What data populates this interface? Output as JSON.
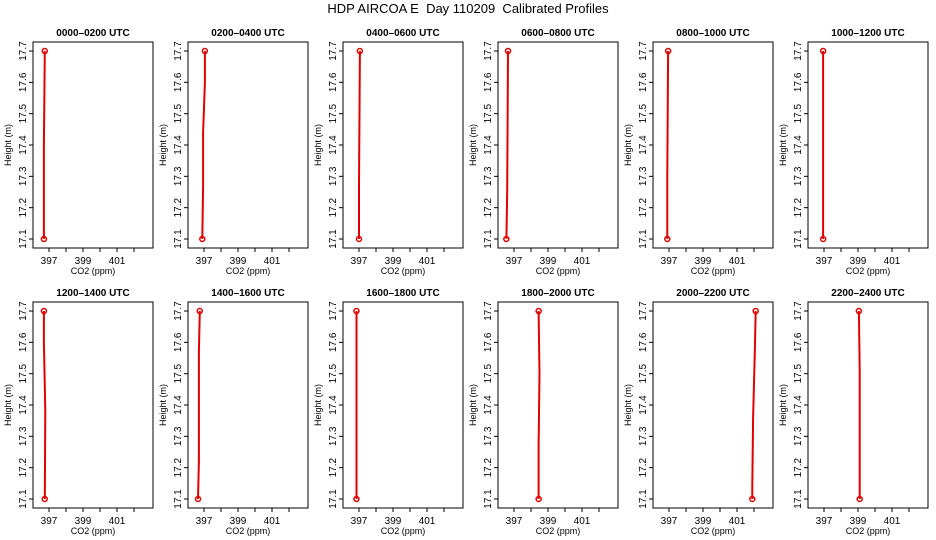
{
  "title": "HDP AIRCOA E  Day 110209  Calibrated Profiles",
  "colors": {
    "profile": "#e00000",
    "axes": "#000000"
  },
  "chart_data": [
    {
      "type": "line",
      "title": "0000–0200 UTC",
      "xlabel": "CO2 (ppm)",
      "ylabel": "Height (m)",
      "xlim": [
        396,
        402.5
      ],
      "ylim": [
        17.07,
        17.73
      ],
      "xticks": [
        "397",
        "399",
        "401"
      ],
      "yticks": [
        "17.1",
        "17.2",
        "17.3",
        "17.4",
        "17.5",
        "17.6",
        "17.7"
      ],
      "series": [
        {
          "points": [
            [
              396.7,
              17.1
            ],
            [
              396.7,
              17.4
            ],
            [
              396.75,
              17.7
            ]
          ]
        }
      ]
    },
    {
      "type": "line",
      "title": "0200–0400 UTC",
      "xlabel": "CO2 (ppm)",
      "ylabel": "Height (m)",
      "xlim": [
        396,
        402.5
      ],
      "ylim": [
        17.07,
        17.73
      ],
      "xticks": [
        "397",
        "399",
        "401"
      ],
      "yticks": [
        "17.1",
        "17.2",
        "17.3",
        "17.4",
        "17.5",
        "17.6",
        "17.7"
      ],
      "series": [
        {
          "points": [
            [
              396.9,
              17.1
            ],
            [
              396.95,
              17.27
            ],
            [
              396.95,
              17.44
            ],
            [
              397.05,
              17.6
            ],
            [
              397.05,
              17.7
            ]
          ]
        }
      ]
    },
    {
      "type": "line",
      "title": "0400–0600 UTC",
      "xlabel": "CO2 (ppm)",
      "ylabel": "Height (m)",
      "xlim": [
        396,
        402.5
      ],
      "ylim": [
        17.07,
        17.73
      ],
      "xticks": [
        "397",
        "399",
        "401"
      ],
      "yticks": [
        "17.1",
        "17.2",
        "17.3",
        "17.4",
        "17.5",
        "17.6",
        "17.7"
      ],
      "series": [
        {
          "points": [
            [
              397.0,
              17.1
            ],
            [
              397.0,
              17.27
            ],
            [
              397.05,
              17.7
            ]
          ]
        }
      ]
    },
    {
      "type": "line",
      "title": "0600–0800 UTC",
      "xlabel": "CO2 (ppm)",
      "ylabel": "Height (m)",
      "xlim": [
        396,
        402.5
      ],
      "ylim": [
        17.07,
        17.73
      ],
      "xticks": [
        "397",
        "399",
        "401"
      ],
      "yticks": [
        "17.1",
        "17.2",
        "17.3",
        "17.4",
        "17.5",
        "17.6",
        "17.7"
      ],
      "series": [
        {
          "points": [
            [
              396.55,
              17.1
            ],
            [
              396.6,
              17.25
            ],
            [
              396.65,
              17.7
            ]
          ]
        }
      ]
    },
    {
      "type": "line",
      "title": "0800–1000 UTC",
      "xlabel": "CO2 (ppm)",
      "ylabel": "Height (m)",
      "xlim": [
        396,
        402.5
      ],
      "ylim": [
        17.07,
        17.73
      ],
      "xticks": [
        "397",
        "399",
        "401"
      ],
      "yticks": [
        "17.1",
        "17.2",
        "17.3",
        "17.4",
        "17.5",
        "17.6",
        "17.7"
      ],
      "series": [
        {
          "points": [
            [
              396.9,
              17.1
            ],
            [
              396.9,
              17.3
            ],
            [
              396.95,
              17.7
            ]
          ]
        }
      ]
    },
    {
      "type": "line",
      "title": "1000–1200 UTC",
      "xlabel": "CO2 (ppm)",
      "ylabel": "Height (m)",
      "xlim": [
        396,
        402.5
      ],
      "ylim": [
        17.07,
        17.73
      ],
      "xticks": [
        "397",
        "399",
        "401"
      ],
      "yticks": [
        "17.1",
        "17.2",
        "17.3",
        "17.4",
        "17.5",
        "17.6",
        "17.7"
      ],
      "series": [
        {
          "points": [
            [
              396.95,
              17.1
            ],
            [
              396.95,
              17.34
            ],
            [
              396.95,
              17.62
            ],
            [
              396.95,
              17.7
            ]
          ]
        }
      ]
    },
    {
      "type": "line",
      "title": "1200–1400 UTC",
      "xlabel": "CO2 (ppm)",
      "ylabel": "Height (m)",
      "xlim": [
        396,
        402.5
      ],
      "ylim": [
        17.07,
        17.73
      ],
      "xticks": [
        "397",
        "399",
        "401"
      ],
      "yticks": [
        "17.1",
        "17.2",
        "17.3",
        "17.4",
        "17.5",
        "17.6",
        "17.7"
      ],
      "series": [
        {
          "points": [
            [
              396.75,
              17.1
            ],
            [
              396.78,
              17.38
            ],
            [
              396.7,
              17.6
            ],
            [
              396.7,
              17.7
            ]
          ]
        }
      ]
    },
    {
      "type": "line",
      "title": "1400–1600 UTC",
      "xlabel": "CO2 (ppm)",
      "ylabel": "Height (m)",
      "xlim": [
        396,
        402.5
      ],
      "ylim": [
        17.07,
        17.73
      ],
      "xticks": [
        "397",
        "399",
        "401"
      ],
      "yticks": [
        "17.1",
        "17.2",
        "17.3",
        "17.4",
        "17.5",
        "17.6",
        "17.7"
      ],
      "series": [
        {
          "points": [
            [
              396.65,
              17.1
            ],
            [
              396.7,
              17.22
            ],
            [
              396.7,
              17.57
            ],
            [
              396.75,
              17.7
            ]
          ]
        }
      ]
    },
    {
      "type": "line",
      "title": "1600–1800 UTC",
      "xlabel": "CO2 (ppm)",
      "ylabel": "Height (m)",
      "xlim": [
        396,
        402.5
      ],
      "ylim": [
        17.07,
        17.73
      ],
      "xticks": [
        "397",
        "399",
        "401"
      ],
      "yticks": [
        "17.1",
        "17.2",
        "17.3",
        "17.4",
        "17.5",
        "17.6",
        "17.7"
      ],
      "series": [
        {
          "points": [
            [
              396.85,
              17.1
            ],
            [
              396.85,
              17.7
            ]
          ]
        }
      ]
    },
    {
      "type": "line",
      "title": "1800–2000 UTC",
      "xlabel": "CO2 (ppm)",
      "ylabel": "Height (m)",
      "xlim": [
        396,
        402.5
      ],
      "ylim": [
        17.07,
        17.73
      ],
      "xticks": [
        "397",
        "399",
        "401"
      ],
      "yticks": [
        "17.1",
        "17.2",
        "17.3",
        "17.4",
        "17.5",
        "17.6",
        "17.7"
      ],
      "series": [
        {
          "points": [
            [
              398.45,
              17.1
            ],
            [
              398.45,
              17.27
            ],
            [
              398.5,
              17.5
            ],
            [
              398.45,
              17.7
            ]
          ]
        }
      ]
    },
    {
      "type": "line",
      "title": "2000–2200 UTC",
      "xlabel": "CO2 (ppm)",
      "ylabel": "Height (m)",
      "xlim": [
        396,
        402.5
      ],
      "ylim": [
        17.07,
        17.73
      ],
      "xticks": [
        "397",
        "399",
        "401"
      ],
      "yticks": [
        "17.1",
        "17.2",
        "17.3",
        "17.4",
        "17.5",
        "17.6",
        "17.7"
      ],
      "series": [
        {
          "points": [
            [
              401.9,
              17.1
            ],
            [
              401.9,
              17.14
            ],
            [
              401.95,
              17.36
            ],
            [
              402.05,
              17.58
            ],
            [
              402.1,
              17.7
            ]
          ]
        }
      ]
    },
    {
      "type": "line",
      "title": "2200–2400 UTC",
      "xlabel": "CO2 (ppm)",
      "ylabel": "Height (m)",
      "xlim": [
        396,
        402.5
      ],
      "ylim": [
        17.07,
        17.73
      ],
      "xticks": [
        "397",
        "399",
        "401"
      ],
      "yticks": [
        "17.1",
        "17.2",
        "17.3",
        "17.4",
        "17.5",
        "17.6",
        "17.7"
      ],
      "series": [
        {
          "points": [
            [
              399.1,
              17.1
            ],
            [
              399.1,
              17.51
            ],
            [
              399.05,
              17.7
            ]
          ]
        }
      ]
    }
  ]
}
